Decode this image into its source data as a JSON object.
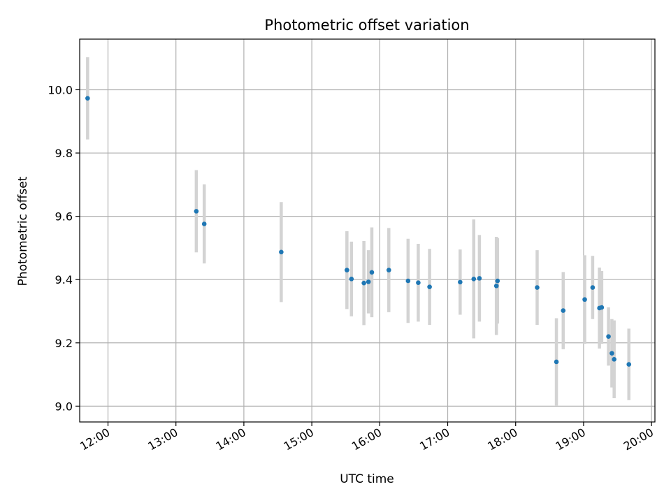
{
  "chart_data": {
    "type": "scatter",
    "title": "Photometric offset variation",
    "xlabel": "UTC time",
    "ylabel": "Photometric offset",
    "x_unit": "hours UTC",
    "xlim": [
      "11:35",
      "20:03"
    ],
    "ylim": [
      8.95,
      10.16
    ],
    "x_ticks": [
      "12:00",
      "13:00",
      "14:00",
      "15:00",
      "16:00",
      "17:00",
      "18:00",
      "19:00",
      "20:00"
    ],
    "y_ticks": [
      "9.0",
      "9.2",
      "9.4",
      "9.6",
      "9.8",
      "10.0"
    ],
    "grid": true,
    "legend": "none",
    "colors": {
      "points": "#1f77b4",
      "errorbars": "#d3d3d3",
      "grid": "#b0b0b0"
    },
    "series": [
      {
        "points": [
          {
            "x": "11:42",
            "y": 9.973,
            "yerr": 0.13
          },
          {
            "x": "13:18",
            "y": 9.616,
            "yerr": 0.13
          },
          {
            "x": "13:25",
            "y": 9.576,
            "yerr": 0.125
          },
          {
            "x": "14:33",
            "y": 9.487,
            "yerr": 0.158
          },
          {
            "x": "15:31",
            "y": 9.43,
            "yerr": 0.123
          },
          {
            "x": "15:35",
            "y": 9.402,
            "yerr": 0.118
          },
          {
            "x": "15:46",
            "y": 9.389,
            "yerr": 0.133
          },
          {
            "x": "15:50",
            "y": 9.393,
            "yerr": 0.1
          },
          {
            "x": "15:53",
            "y": 9.423,
            "yerr": 0.142
          },
          {
            "x": "16:08",
            "y": 9.43,
            "yerr": 0.133
          },
          {
            "x": "16:25",
            "y": 9.396,
            "yerr": 0.133
          },
          {
            "x": "16:34",
            "y": 9.39,
            "yerr": 0.123
          },
          {
            "x": "16:44",
            "y": 9.377,
            "yerr": 0.12
          },
          {
            "x": "17:11",
            "y": 9.392,
            "yerr": 0.103
          },
          {
            "x": "17:23",
            "y": 9.402,
            "yerr": 0.188
          },
          {
            "x": "17:28",
            "y": 9.404,
            "yerr": 0.137
          },
          {
            "x": "17:43",
            "y": 9.38,
            "yerr": 0.155
          },
          {
            "x": "17:44",
            "y": 9.396,
            "yerr": 0.135
          },
          {
            "x": "18:19",
            "y": 9.375,
            "yerr": 0.118
          },
          {
            "x": "18:36",
            "y": 9.14,
            "yerr": 0.138
          },
          {
            "x": "18:42",
            "y": 9.302,
            "yerr": 0.122
          },
          {
            "x": "19:01",
            "y": 9.337,
            "yerr": 0.14
          },
          {
            "x": "19:08",
            "y": 9.375,
            "yerr": 0.1
          },
          {
            "x": "19:14",
            "y": 9.31,
            "yerr": 0.128
          },
          {
            "x": "19:16",
            "y": 9.312,
            "yerr": 0.115
          },
          {
            "x": "19:22",
            "y": 9.22,
            "yerr": 0.092
          },
          {
            "x": "19:25",
            "y": 9.167,
            "yerr": 0.108
          },
          {
            "x": "19:27",
            "y": 9.148,
            "yerr": 0.123
          },
          {
            "x": "19:40",
            "y": 9.132,
            "yerr": 0.113
          }
        ]
      }
    ]
  }
}
